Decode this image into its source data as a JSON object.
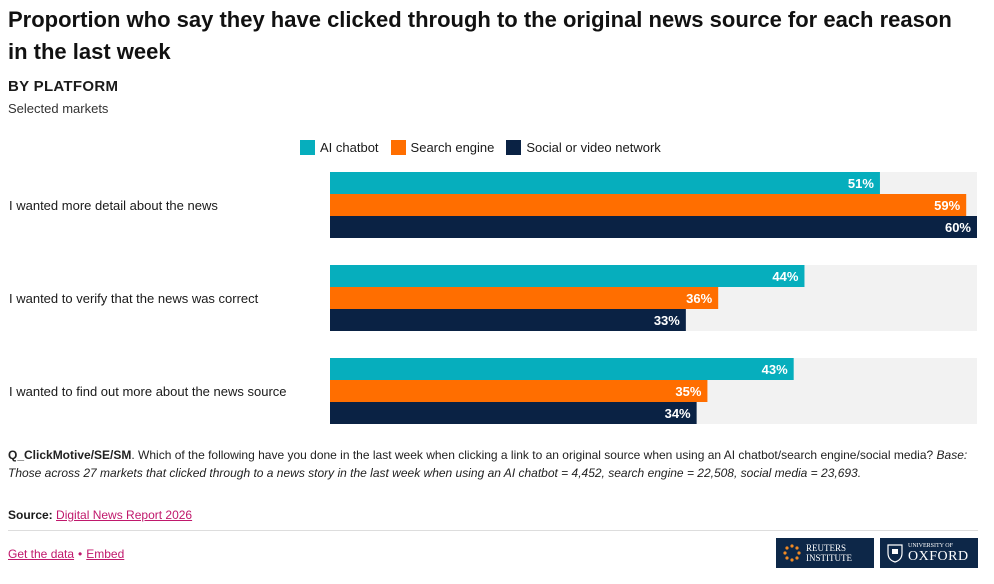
{
  "title": "Proportion who say they have clicked through to the original news source for each reason in the last week",
  "subtitle": "BY PLATFORM",
  "subsubtitle": "Selected markets",
  "legend": [
    {
      "label": "AI chatbot",
      "color": "#06aebd"
    },
    {
      "label": "Search engine",
      "color": "#ff6e00"
    },
    {
      "label": "Social or video network",
      "color": "#0a2244"
    }
  ],
  "chart_data": {
    "type": "bar",
    "orientation": "horizontal",
    "categories": [
      "I wanted more detail about the news",
      "I wanted to verify that the news was correct",
      "I wanted to find out more about the news source"
    ],
    "series": [
      {
        "name": "AI chatbot",
        "values": [
          51,
          44,
          43
        ],
        "color": "#06aebd"
      },
      {
        "name": "Search engine",
        "values": [
          59,
          36,
          35
        ],
        "color": "#ff6e00"
      },
      {
        "name": "Social or video network",
        "values": [
          60,
          33,
          34
        ],
        "color": "#0a2244"
      }
    ],
    "value_suffix": "%",
    "xlim": [
      0,
      60
    ],
    "grid": false,
    "legend_position": "top"
  },
  "notes": {
    "question_code": "Q_ClickMotive/SE/SM",
    "question_text": ". Which of the following have you done in the last week when clicking a link to an original source when using an AI chatbot/search engine/social media?",
    "base": "Base: Those across 27 markets that clicked through to a news story in the last week when using an AI chatbot = 4,452, search engine = 22,508, social media = 23,693."
  },
  "source": {
    "label": "Source:",
    "link": "Digital News Report 2026"
  },
  "footer": {
    "get_data": "Get the data",
    "separator": "•",
    "embed": "Embed"
  },
  "logos": {
    "reuters_line1": "REUTERS",
    "reuters_line2": "INSTITUTE",
    "oxford_line1": "UNIVERSITY OF",
    "oxford_line2": "OXFORD"
  }
}
